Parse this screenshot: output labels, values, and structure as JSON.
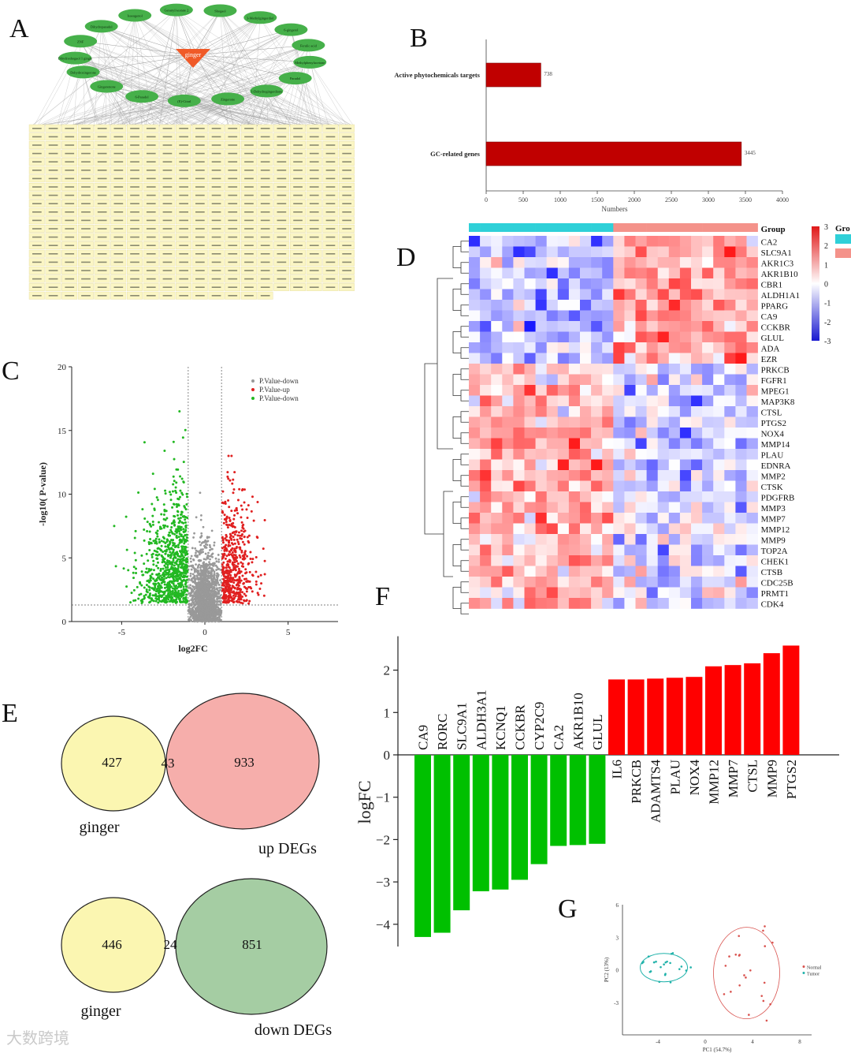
{
  "panels": {
    "A": "A",
    "B": "B",
    "C": "C",
    "D": "D",
    "E": "E",
    "F": "F",
    "G": "G"
  },
  "network": {
    "center_label": "ginger",
    "nodes": [
      "Dihydroshogaol 1 gingle",
      "ZNF",
      "Dihydroparadol",
      "Isoeugenol",
      "Geranyl/acetate 2",
      "Shogaol",
      "3-Methylgingerdiol",
      "6-gingerol",
      "Ferulic acid",
      "Methylphenylacetone",
      "Paradol",
      "1-Dehydrogingerdione",
      "Zingerone",
      "(E)-Citral",
      "6-Paradol",
      "Gingerenone",
      "Dehydrozingerone"
    ],
    "gene_grid_rows": 21,
    "gene_grid_cols": 20
  },
  "chart_data": [
    {
      "panel": "B",
      "type": "bar",
      "orientation": "horizontal",
      "categories": [
        "Active phytochemicals targets",
        "GC-related genes"
      ],
      "values": [
        738,
        3445
      ],
      "value_labels": [
        "738",
        "3445"
      ],
      "xlabel": "Numbers",
      "xlim": [
        0,
        4000
      ],
      "xticks": [
        "0",
        "500",
        "1000",
        "1500",
        "2000",
        "2500",
        "3000",
        "3500",
        "4000"
      ],
      "color": "#c00000"
    },
    {
      "panel": "C",
      "type": "scatter",
      "xlabel": "log2FC",
      "ylabel": "-log10( P-value)",
      "xlim": [
        -8,
        8
      ],
      "ylim": [
        0,
        20
      ],
      "xticks": [
        "-5",
        "0",
        "5"
      ],
      "yticks": [
        "0",
        "5",
        "10",
        "15",
        "20"
      ],
      "legend": [
        "P.Value-down",
        "P.Value-up",
        "P.Value-down"
      ],
      "legend_colors": [
        "#999999",
        "#e02020",
        "#22b822"
      ],
      "legend_placement": "top-right",
      "fc_threshold": 1,
      "p_threshold": 1.3
    },
    {
      "panel": "D",
      "type": "heatmap",
      "rows": [
        "CA2",
        "SLC9A1",
        "AKR1C3",
        "AKR1B10",
        "CBR1",
        "ALDH1A1",
        "PPARG",
        "CA9",
        "CCKBR",
        "GLUL",
        "ADA",
        "EZR",
        "PRKCB",
        "FGFR1",
        "MPEG1",
        "MAP3K8",
        "CTSL",
        "PTGS2",
        "NOX4",
        "MMP14",
        "PLAU",
        "EDNRA",
        "MMP2",
        "CTSK",
        "PDGFRB",
        "MMP3",
        "MMP7",
        "MMP12",
        "MMP9",
        "TOP2A",
        "CHEK1",
        "CTSB",
        "CDC25B",
        "PRMT1",
        "CDK4"
      ],
      "group_label": "Group",
      "legend_title": "Gro",
      "colorbar_ticks": [
        "3",
        "2",
        "1",
        "0",
        "-1",
        "-2",
        "-3"
      ],
      "group_colors": [
        "#2fd0d8",
        "#f4928a"
      ],
      "high_color": "#e01818",
      "low_color": "#1818d0"
    },
    {
      "panel": "F",
      "type": "bar",
      "ylabel": "logFC",
      "ylim": [
        -4.5,
        2.8
      ],
      "yticks": [
        "2",
        "1",
        "0",
        "−1",
        "−2",
        "−3",
        "−4"
      ],
      "categories": [
        "CA9",
        "RORC",
        "SLC9A1",
        "ALDH3A1",
        "KCNQ1",
        "CCKBR",
        "CYP2C9",
        "CA2",
        "AKR1B10",
        "GLUL",
        "IL6",
        "PRKCB",
        "ADAMTS4",
        "PLAU",
        "NOX4",
        "MMP12",
        "MMP7",
        "CTSL",
        "MMP9",
        "PTGS2"
      ],
      "values": [
        -4.3,
        -4.2,
        -3.67,
        -3.22,
        -3.18,
        -2.95,
        -2.58,
        -2.15,
        -2.13,
        -2.1,
        1.78,
        1.78,
        1.8,
        1.82,
        1.84,
        2.09,
        2.12,
        2.16,
        2.4,
        2.58
      ],
      "pos_color": "#ff0000",
      "neg_color": "#00c000"
    },
    {
      "panel": "G",
      "type": "scatter",
      "xlabel": "PC1 (54.7%)",
      "ylabel": "PC2 (13%)",
      "xticks": [
        "-4",
        "0",
        "4",
        "8"
      ],
      "yticks": [
        "6",
        "3",
        "0",
        "-3"
      ],
      "legend": [
        "Normal",
        "Tumor"
      ],
      "legend_colors": [
        "#d9534f",
        "#20b2aa"
      ],
      "legend_placement": "right"
    }
  ],
  "venn": [
    {
      "left_label": "ginger",
      "right_label": "up DEGs",
      "left_only": "427",
      "overlap": "43",
      "right_only": "933",
      "left_color": "#fbf5a8",
      "right_color": "#f49a96"
    },
    {
      "left_label": "ginger",
      "right_label": "down DEGs",
      "left_only": "446",
      "overlap": "24",
      "right_only": "851",
      "left_color": "#fbf5a8",
      "right_color": "#8fc08c"
    }
  ],
  "watermark": "大数跨境"
}
